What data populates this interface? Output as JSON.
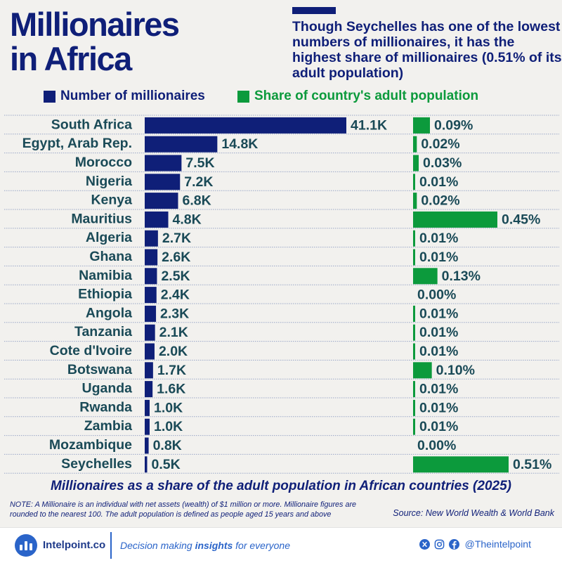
{
  "header": {
    "title_line1": "Millionaires",
    "title_line2": "in Africa",
    "subtitle": "Though Seychelles has one of the lowest numbers of millionaires, it has the highest share of millionaires (0.51% of its adult population)"
  },
  "legend": {
    "millionaires_label": "Number of millionaires",
    "share_label": "Share of country's adult population"
  },
  "colors": {
    "navy": "#0f1f78",
    "green": "#0c9a3c",
    "label_text": "#1a4a57",
    "background": "#f2f1ee"
  },
  "chart_data": {
    "type": "bar",
    "orientation": "horizontal",
    "title": "Millionaires as a share of the adult population in African countries (2025)",
    "categories": [
      "South Africa",
      "Egypt, Arab Rep.",
      "Morocco",
      "Nigeria",
      "Kenya",
      "Mauritius",
      "Algeria",
      "Ghana",
      "Namibia",
      "Ethiopia",
      "Angola",
      "Tanzania",
      "Cote d'Ivoire",
      "Botswana",
      "Uganda",
      "Rwanda",
      "Zambia",
      "Mozambique",
      "Seychelles"
    ],
    "series": [
      {
        "name": "Number of millionaires",
        "values": [
          41100,
          14800,
          7500,
          7200,
          6800,
          4800,
          2700,
          2600,
          2500,
          2400,
          2300,
          2100,
          2000,
          1700,
          1600,
          1000,
          1000,
          800,
          500
        ],
        "labels": [
          "41.1K",
          "14.8K",
          "7.5K",
          "7.2K",
          "6.8K",
          "4.8K",
          "2.7K",
          "2.6K",
          "2.5K",
          "2.4K",
          "2.3K",
          "2.1K",
          "2.0K",
          "1.7K",
          "1.6K",
          "1.0K",
          "1.0K",
          "0.8K",
          "0.5K"
        ],
        "color": "#0f1f78"
      },
      {
        "name": "Share of country's adult population",
        "values": [
          0.09,
          0.02,
          0.03,
          0.01,
          0.02,
          0.45,
          0.01,
          0.01,
          0.13,
          0.0,
          0.01,
          0.01,
          0.01,
          0.1,
          0.01,
          0.01,
          0.01,
          0.0,
          0.51
        ],
        "labels": [
          "0.09%",
          "0.02%",
          "0.03%",
          "0.01%",
          "0.02%",
          "0.45%",
          "0.01%",
          "0.01%",
          "0.13%",
          "0.00%",
          "0.01%",
          "0.01%",
          "0.01%",
          "0.10%",
          "0.01%",
          "0.01%",
          "0.01%",
          "0.00%",
          "0.51%"
        ],
        "unit": "%",
        "color": "#0c9a3c"
      }
    ],
    "grid": false
  },
  "footer": {
    "note": "NOTE: A Millionaire is an individual with net assets (wealth) of $1 million or more. Millionaire figures are rounded to the nearest 100. The adult population is defined as people aged 15 years and above",
    "source": "Source: New World Wealth & World Bank",
    "brand": "Intelpoint.co",
    "tagline_pre": "Decision making",
    "tagline_bold": "insights",
    "tagline_post": "for everyone",
    "social_handle": "@Theintelpoint",
    "icons": [
      "x-icon",
      "instagram-icon",
      "facebook-icon"
    ]
  }
}
